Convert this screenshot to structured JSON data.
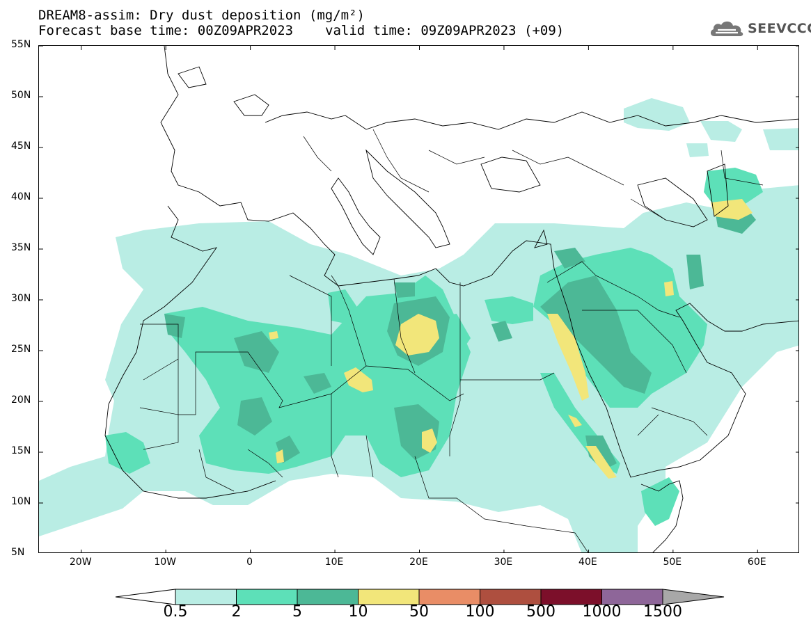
{
  "header": {
    "title_line1": "DREAM8-assim: Dry dust deposition (mg/m²)",
    "forecast_base_time": "Forecast base time: 00Z09APR2023",
    "valid_time": "valid time: 09Z09APR2023 (+09)"
  },
  "logo": {
    "text": "SEEVCCC",
    "icon": "cloud-logo-icon"
  },
  "map": {
    "lon_range": [
      -25,
      65
    ],
    "lat_range": [
      5,
      55
    ],
    "lat_ticks": [
      {
        "value": 55,
        "label": "55N"
      },
      {
        "value": 50,
        "label": "50N"
      },
      {
        "value": 45,
        "label": "45N"
      },
      {
        "value": 40,
        "label": "40N"
      },
      {
        "value": 35,
        "label": "35N"
      },
      {
        "value": 30,
        "label": "30N"
      },
      {
        "value": 25,
        "label": "25N"
      },
      {
        "value": 20,
        "label": "20N"
      },
      {
        "value": 15,
        "label": "15N"
      },
      {
        "value": 10,
        "label": "10N"
      },
      {
        "value": 5,
        "label": "5N"
      }
    ],
    "lon_ticks": [
      {
        "value": -20,
        "label": "20W"
      },
      {
        "value": -10,
        "label": "10W"
      },
      {
        "value": 0,
        "label": "0"
      },
      {
        "value": 10,
        "label": "10E"
      },
      {
        "value": 20,
        "label": "20E"
      },
      {
        "value": 30,
        "label": "30E"
      },
      {
        "value": 40,
        "label": "40E"
      },
      {
        "value": 50,
        "label": "50E"
      },
      {
        "value": 60,
        "label": "60E"
      }
    ]
  },
  "colorbar": {
    "levels": [
      "0.5",
      "2",
      "5",
      "10",
      "50",
      "100",
      "500",
      "1000",
      "1500"
    ],
    "colors": {
      "below": "#ffffff",
      "bins": [
        "#b9ede4",
        "#5de0b8",
        "#4cb896",
        "#f2e67a",
        "#e98d66",
        "#ae4f3f",
        "#7c0f2a",
        "#8e6699"
      ],
      "above": "#a8a8a8"
    }
  }
}
